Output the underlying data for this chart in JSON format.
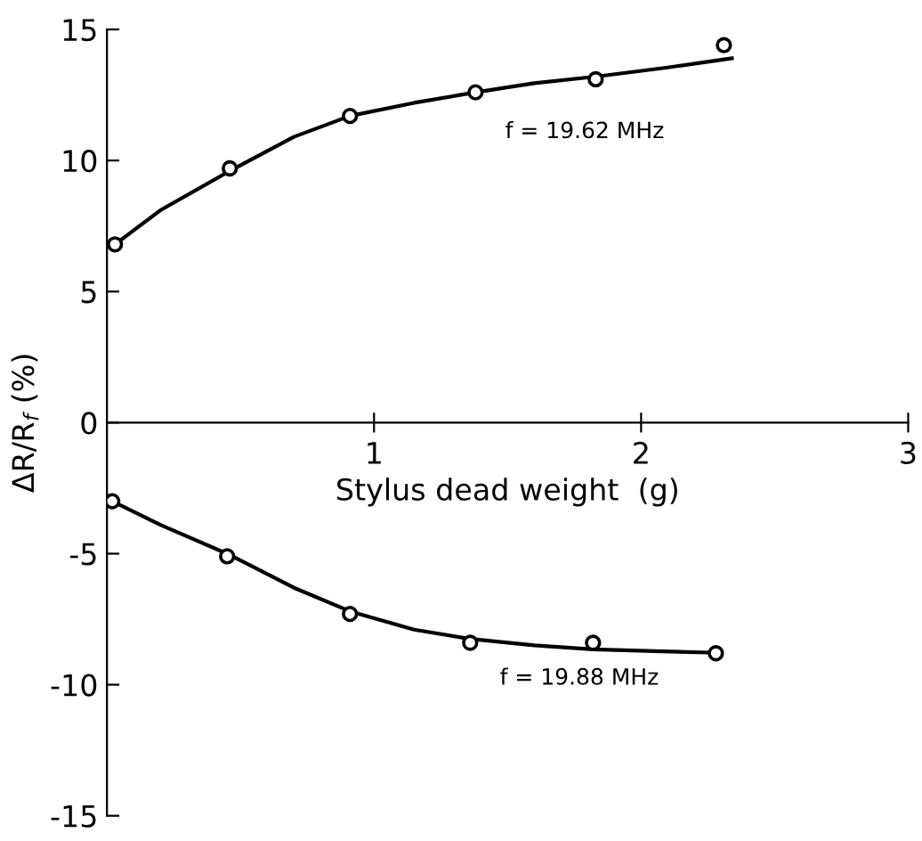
{
  "chart_data": {
    "type": "scatter",
    "xlabel": "Stylus dead weight  (g)",
    "ylabel": "ΔR/R$_{f}$ (%)",
    "xlim": [
      0,
      3
    ],
    "xticks": [
      1,
      2,
      3
    ],
    "ylim": [
      -15,
      15
    ],
    "yticks": [
      -15,
      -10,
      -5,
      0,
      5,
      10,
      15
    ],
    "grid": false,
    "legend": false,
    "series": [
      {
        "color": "#000000",
        "marker": "circle",
        "x": [
          0.03,
          0.46,
          0.91,
          1.38,
          1.83,
          2.31
        ],
        "values": [
          6.8,
          9.7,
          11.7,
          12.6,
          13.1,
          14.4
        ]
      },
      {
        "type": "line",
        "color": "#000000",
        "marker": "none",
        "line_style": "solid",
        "x": [
          0.03,
          0.2,
          0.46,
          0.7,
          0.91,
          1.15,
          1.38,
          1.6,
          1.83,
          2.1,
          2.34
        ],
        "values": [
          6.8,
          8.1,
          9.6,
          10.9,
          11.7,
          12.2,
          12.6,
          12.95,
          13.2,
          13.55,
          13.9
        ]
      },
      {
        "color": "#000000",
        "marker": "circle",
        "x": [
          0.02,
          0.45,
          0.91,
          1.36,
          1.82,
          2.28
        ],
        "values": [
          -3.0,
          -5.1,
          -7.3,
          -8.4,
          -8.4,
          -8.8
        ]
      },
      {
        "type": "line",
        "color": "#000000",
        "marker": "none",
        "line_style": "solid",
        "x": [
          0.02,
          0.2,
          0.45,
          0.7,
          0.91,
          1.15,
          1.36,
          1.6,
          1.82,
          2.05,
          2.28
        ],
        "values": [
          -3.0,
          -3.9,
          -5.0,
          -6.3,
          -7.2,
          -7.9,
          -8.25,
          -8.5,
          -8.65,
          -8.72,
          -8.78
        ]
      }
    ],
    "annotations": [
      "f = 19.62 MHz",
      "f = 19.88 MHz"
    ]
  }
}
